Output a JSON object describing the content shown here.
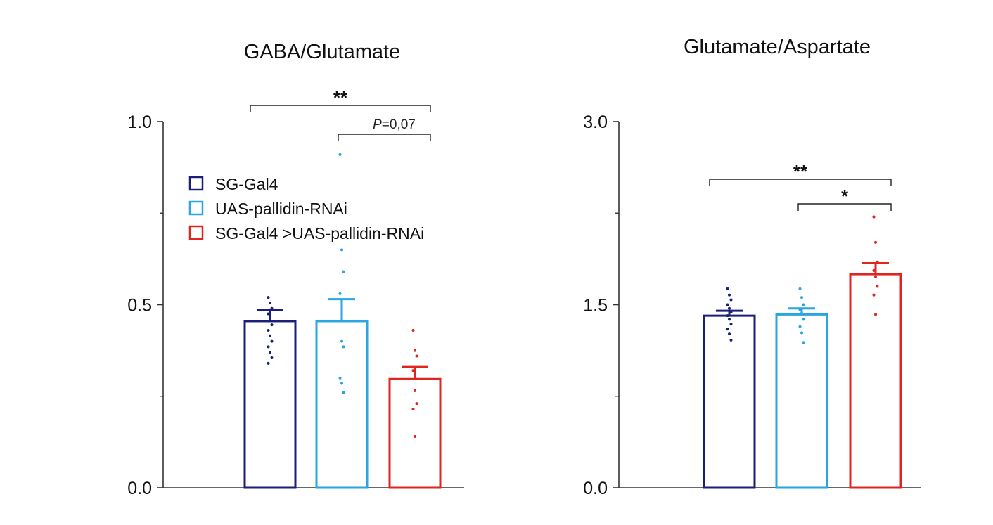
{
  "colors": {
    "SG-Gal4": "#1c1f7a",
    "UAS-pallidin-RNAi": "#29a6e0",
    "SG-Gal4 >UAS-pallidin-RNAi": "#e0241f",
    "axis": "#333333",
    "bracket": "#222222"
  },
  "legend": {
    "entries": [
      "SG-Gal4",
      "UAS-pallidin-RNAi",
      "SG-Gal4 >UAS-pallidin-RNAi"
    ],
    "placement": "top-left of first chart"
  },
  "chart_data": [
    {
      "type": "bar",
      "title": "GABA/Glutamate",
      "xlabel": "",
      "ylabel": "",
      "ylim": [
        0,
        1.0
      ],
      "yticks": [
        0.0,
        0.5,
        1.0
      ],
      "ytick_labels": [
        "0.0",
        "0.5",
        "1.0"
      ],
      "grid": false,
      "categories": [
        "SG-Gal4",
        "UAS-pallidin-RNAi",
        "SG-Gal4 >UAS-pallidin-RNAi"
      ],
      "values": [
        0.455,
        0.455,
        0.297
      ],
      "errors": [
        0.03,
        0.06,
        0.033
      ],
      "points": [
        [
          0.52,
          0.505,
          0.49,
          0.475,
          0.46,
          0.445,
          0.43,
          0.415,
          0.4,
          0.385,
          0.37,
          0.355,
          0.34
        ],
        [
          0.91,
          0.65,
          0.59,
          0.53,
          0.4,
          0.385,
          0.3,
          0.285,
          0.26
        ],
        [
          0.43,
          0.375,
          0.36,
          0.32,
          0.265,
          0.23,
          0.215,
          0.14
        ]
      ],
      "annotations": [
        {
          "from": 0,
          "to": 2,
          "label": "**"
        },
        {
          "from": 1,
          "to": 2,
          "label": "P=0,07",
          "italic_prefix": "P"
        }
      ]
    },
    {
      "type": "bar",
      "title": "Glutamate/Aspartate",
      "xlabel": "",
      "ylabel": "",
      "ylim": [
        0,
        3.0
      ],
      "yticks": [
        0.0,
        1.5,
        3.0
      ],
      "ytick_labels": [
        "0.0",
        "1.5",
        "3.0"
      ],
      "grid": false,
      "categories": [
        "SG-Gal4",
        "UAS-pallidin-RNAi",
        "SG-Gal4 >UAS-pallidin-RNAi"
      ],
      "values": [
        1.41,
        1.42,
        1.75
      ],
      "errors": [
        0.04,
        0.05,
        0.09
      ],
      "points": [
        [
          1.63,
          1.58,
          1.54,
          1.5,
          1.47,
          1.44,
          1.41,
          1.38,
          1.34,
          1.3,
          1.26,
          1.21
        ],
        [
          1.63,
          1.56,
          1.5,
          1.46,
          1.43,
          1.38,
          1.32,
          1.27,
          1.19
        ],
        [
          2.22,
          2.01,
          1.85,
          1.78,
          1.73,
          1.65,
          1.58,
          1.42
        ]
      ],
      "annotations": [
        {
          "from": 0,
          "to": 2,
          "label": "**"
        },
        {
          "from": 1,
          "to": 2,
          "label": "*"
        }
      ]
    }
  ]
}
